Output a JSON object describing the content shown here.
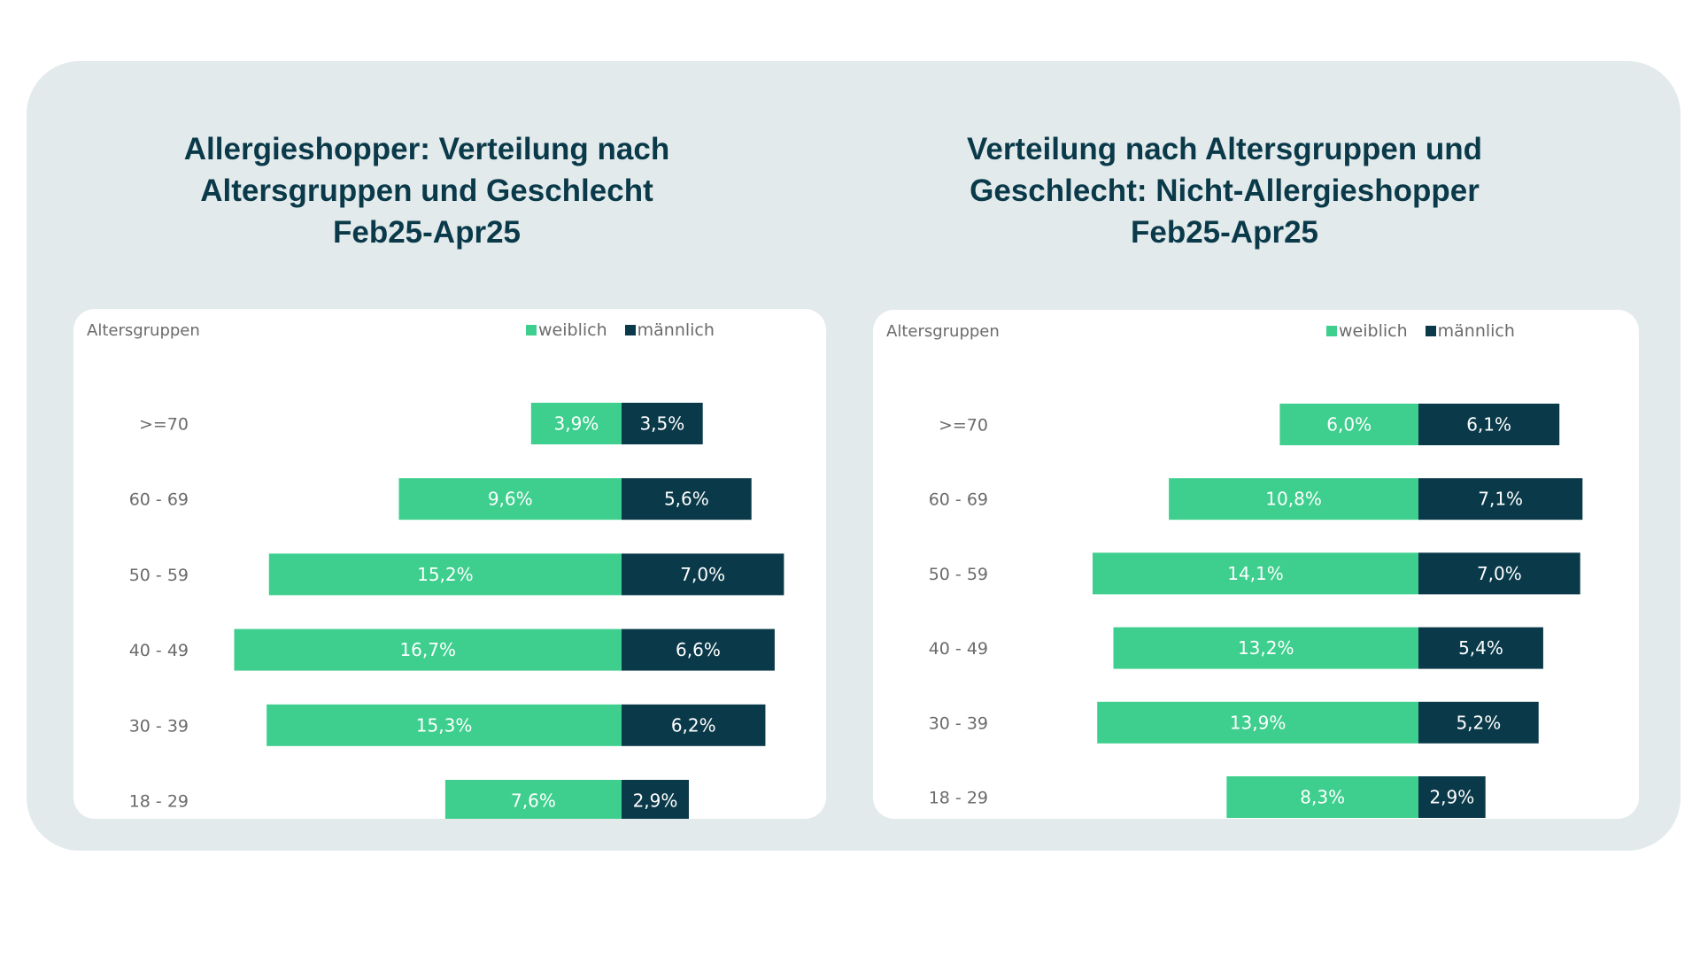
{
  "colors": {
    "panel_bg": "#e3eaeb",
    "card_bg": "#ffffff",
    "weiblich": "#3ecf8e",
    "maennlich": "#0a3a4a",
    "title": "#0a3a4a",
    "label": "#6b6b6b"
  },
  "chart_data": [
    {
      "type": "bar",
      "title_lines": [
        "Allergieshopper: Verteilung nach",
        "Altersgruppen und Geschlecht",
        "Feb25-Apr25"
      ],
      "ylabel": "Altersgruppen",
      "legend": [
        "weiblich",
        "männlich"
      ],
      "legend_position": "top-right",
      "categories": [
        ">=70",
        "60 - 69",
        "50 - 59",
        "40 - 49",
        "30 - 39",
        "18 - 29"
      ],
      "series": [
        {
          "name": "weiblich",
          "values": [
            3.9,
            9.6,
            15.2,
            16.7,
            15.3,
            7.6
          ],
          "labels": [
            "3,9%",
            "9,6%",
            "15,2%",
            "16,7%",
            "15,3%",
            "7,6%"
          ]
        },
        {
          "name": "männlich",
          "values": [
            3.5,
            5.6,
            7.0,
            6.6,
            6.2,
            2.9
          ],
          "labels": [
            "3,5%",
            "5,6%",
            "7,0%",
            "6,6%",
            "6,2%",
            "2,9%"
          ]
        }
      ],
      "stacking": "diverging",
      "grid": false
    },
    {
      "type": "bar",
      "title_lines": [
        "Verteilung nach Altersgruppen und",
        "Geschlecht: Nicht-Allergieshopper",
        "Feb25-Apr25"
      ],
      "ylabel": "Altersgruppen",
      "legend": [
        "weiblich",
        "männlich"
      ],
      "legend_position": "top-right",
      "categories": [
        ">=70",
        "60 - 69",
        "50 - 59",
        "40 - 49",
        "30 - 39",
        "18 - 29"
      ],
      "series": [
        {
          "name": "weiblich",
          "values": [
            6.0,
            10.8,
            14.1,
            13.2,
            13.9,
            8.3
          ],
          "labels": [
            "6,0%",
            "10,8%",
            "14,1%",
            "13,2%",
            "13,9%",
            "8,3%"
          ]
        },
        {
          "name": "männlich",
          "values": [
            6.1,
            7.1,
            7.0,
            5.4,
            5.2,
            2.9
          ],
          "labels": [
            "6,1%",
            "7,1%",
            "7,0%",
            "5,4%",
            "5,2%",
            "2,9%"
          ]
        }
      ],
      "stacking": "diverging",
      "grid": false
    }
  ]
}
